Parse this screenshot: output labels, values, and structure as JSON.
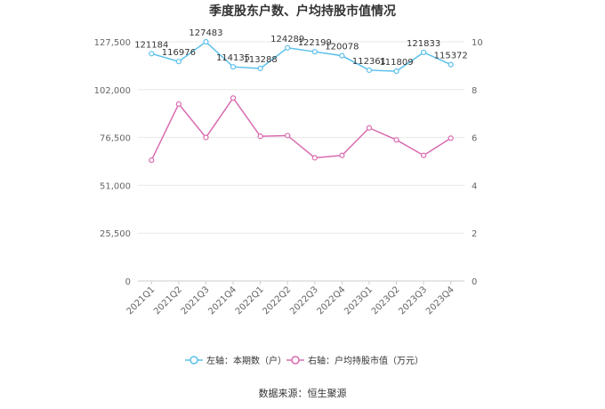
{
  "chart_data": {
    "type": "line",
    "title": "季度股东户数、户均持股市值情况",
    "categories": [
      "2021Q1",
      "2021Q2",
      "2021Q3",
      "2021Q4",
      "2022Q1",
      "2022Q2",
      "2022Q3",
      "2022Q4",
      "2023Q1",
      "2023Q2",
      "2023Q3",
      "2023Q4"
    ],
    "series": [
      {
        "name": "左轴：本期数（户）",
        "axis": "left",
        "color": "#5bc0eb",
        "values": [
          121184,
          116976,
          127483,
          114135,
          113288,
          124289,
          122199,
          120078,
          112361,
          111809,
          121833,
          115372
        ],
        "labels": [
          "121184",
          "116976",
          "127483",
          "114135",
          "113288",
          "124289",
          "122199",
          "120078",
          "112361",
          "111809",
          "121833",
          "115372"
        ]
      },
      {
        "name": "右轴：户均持股市值（万元）",
        "axis": "right",
        "color": "#d96bb0",
        "values": [
          5.05,
          7.4,
          6.0,
          7.65,
          6.05,
          6.08,
          5.15,
          5.25,
          6.4,
          5.9,
          5.25,
          5.97
        ]
      }
    ],
    "left_axis": {
      "ylim": [
        0,
        127500
      ],
      "ticks": [
        "0",
        "25,500",
        "51,000",
        "76,500",
        "102,000",
        "127,500"
      ]
    },
    "right_axis": {
      "ylim": [
        0,
        10
      ],
      "ticks": [
        "0",
        "2",
        "4",
        "6",
        "8",
        "10"
      ]
    },
    "grid": true,
    "legend_position": "bottom"
  },
  "source": "数据来源：恒生聚源"
}
